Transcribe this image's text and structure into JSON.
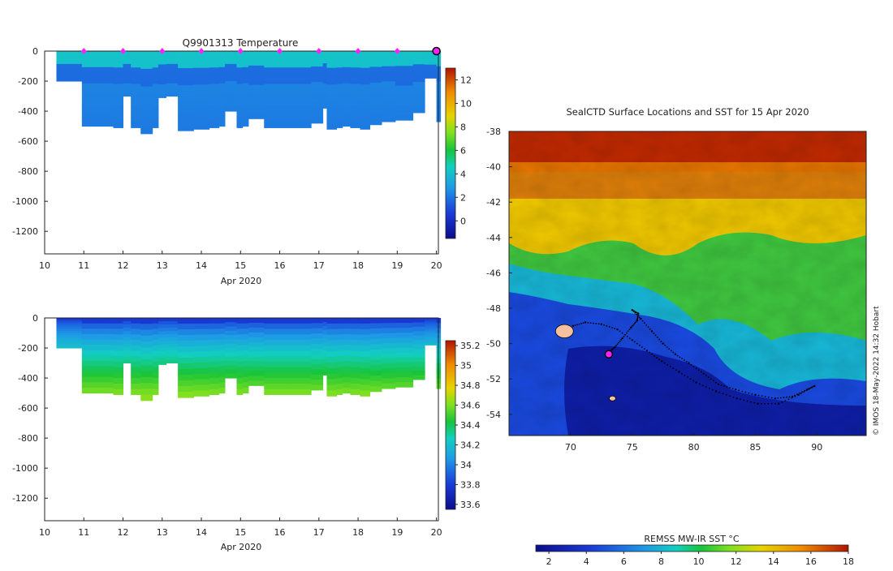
{
  "colors": {
    "mark": "#ff22ff",
    "track": "#000000",
    "land": "#f4c0a0",
    "axis": "#222222"
  },
  "chart_data": [
    {
      "id": "temperature",
      "type": "heatmap",
      "title": "Q9901313  Temperature",
      "xlabel": "Apr 2020",
      "ylabel": "",
      "xlim": [
        10,
        20.05
      ],
      "ylim": [
        -1350,
        0
      ],
      "xticks": [
        "10",
        "11",
        "12",
        "13",
        "14",
        "15",
        "16",
        "17",
        "18",
        "19",
        "20"
      ],
      "yticks": [
        "0",
        "-200",
        "-400",
        "-600",
        "-800",
        "-1000",
        "-1200"
      ],
      "ytick_values": [
        0,
        -200,
        -400,
        -600,
        -800,
        -1000,
        -1200
      ],
      "colorbar": {
        "min": -1.5,
        "max": 13,
        "ticks": [
          "0",
          "2",
          "4",
          "6",
          "8",
          "10",
          "12"
        ],
        "tick_values": [
          0,
          2,
          4,
          6,
          8,
          10,
          12
        ]
      },
      "surface_value": 4.2,
      "deep_value": 2.1,
      "profile_days": [
        10.3,
        10.95,
        11.4,
        11.75,
        12.0,
        12.2,
        12.45,
        12.75,
        12.9,
        13.1,
        13.4,
        13.8,
        14.2,
        14.45,
        14.6,
        14.9,
        15.05,
        15.2,
        15.6,
        16.3,
        16.8,
        17.1,
        17.2,
        17.45,
        17.6,
        17.8,
        18.05,
        18.3,
        18.6,
        18.95,
        19.4,
        19.7,
        20.0
      ],
      "profile_depths": [
        -200,
        -500,
        -500,
        -510,
        -300,
        -510,
        -550,
        -510,
        -310,
        -300,
        -530,
        -520,
        -510,
        -500,
        -400,
        -510,
        -500,
        -450,
        -510,
        -510,
        -480,
        -380,
        -520,
        -510,
        -500,
        -510,
        -520,
        -490,
        -470,
        -460,
        -410,
        -180,
        -470
      ],
      "surface_markers": [
        11,
        12,
        13,
        14,
        15,
        16,
        17,
        18,
        19,
        20
      ]
    },
    {
      "id": "salinity",
      "type": "heatmap",
      "title": "",
      "xlabel": "Apr 2020",
      "ylabel": "",
      "xlim": [
        10,
        20.05
      ],
      "ylim": [
        -1350,
        0
      ],
      "xticks": [
        "10",
        "11",
        "12",
        "13",
        "14",
        "15",
        "16",
        "17",
        "18",
        "19",
        "20"
      ],
      "yticks": [
        "0",
        "-200",
        "-400",
        "-600",
        "-800",
        "-1000",
        "-1200"
      ],
      "ytick_values": [
        0,
        -200,
        -400,
        -600,
        -800,
        -1000,
        -1200
      ],
      "colorbar": {
        "min": 33.55,
        "max": 35.25,
        "ticks": [
          "33.6",
          "33.8",
          "34",
          "34.2",
          "34.4",
          "34.6",
          "34.8",
          "35",
          "35.2"
        ],
        "tick_values": [
          33.6,
          33.8,
          34.0,
          34.2,
          34.4,
          34.6,
          34.8,
          35.0,
          35.2
        ]
      },
      "surface_value": 33.78,
      "deep_value": 34.62
    },
    {
      "id": "sst-map",
      "type": "heatmap",
      "title": "SealCTD Surface Locations and SST for 15 Apr 2020",
      "xlabel": "",
      "ylabel": "",
      "xlim": [
        65,
        94
      ],
      "ylim": [
        -55.2,
        -38
      ],
      "xticks": [
        "70",
        "75",
        "80",
        "85",
        "90"
      ],
      "xtick_values": [
        70,
        75,
        80,
        85,
        90
      ],
      "yticks": [
        "-38",
        "-40",
        "-42",
        "-44",
        "-46",
        "-48",
        "-50",
        "-52",
        "-54"
      ],
      "ytick_values": [
        -38,
        -40,
        -42,
        -44,
        -46,
        -48,
        -50,
        -52,
        -54
      ],
      "colorbar": {
        "label": "REMSS MW-IR SST °C",
        "min": 1.3,
        "max": 18,
        "ticks": [
          "2",
          "4",
          "6",
          "8",
          "10",
          "12",
          "14",
          "16",
          "18"
        ],
        "tick_values": [
          2,
          4,
          6,
          8,
          10,
          12,
          14,
          16,
          18
        ]
      },
      "track_lon": [
        73.1,
        73.6,
        74.2,
        74.9,
        75.4,
        75.5,
        75.0,
        75.7,
        76.6,
        77.5,
        78.5,
        79.6,
        80.8,
        82.0,
        83.4,
        85.0,
        86.6,
        88.0,
        89.2,
        89.8,
        88.5,
        86.9,
        85.2,
        83.5,
        81.8,
        80.2,
        78.8,
        77.4,
        76.2,
        75.0,
        73.8,
        72.5,
        71.2,
        70.2
      ],
      "track_lat": [
        -50.5,
        -50.2,
        -49.7,
        -49.1,
        -48.7,
        -48.3,
        -48.1,
        -48.6,
        -49.3,
        -50.0,
        -50.6,
        -51.1,
        -51.7,
        -52.3,
        -52.6,
        -52.9,
        -53.1,
        -53.0,
        -52.6,
        -52.4,
        -52.9,
        -53.4,
        -53.4,
        -53.1,
        -52.7,
        -52.2,
        -51.6,
        -51.0,
        -50.4,
        -49.8,
        -49.2,
        -48.9,
        -48.8,
        -49.0
      ],
      "current_position": {
        "lon": 73.1,
        "lat": -50.6
      },
      "islands": [
        {
          "lon": 69.5,
          "lat": -49.3
        },
        {
          "lon": 73.4,
          "lat": -53.1
        }
      ]
    }
  ],
  "credit": "© IMOS 18-May-2022 14:32 Hobart"
}
